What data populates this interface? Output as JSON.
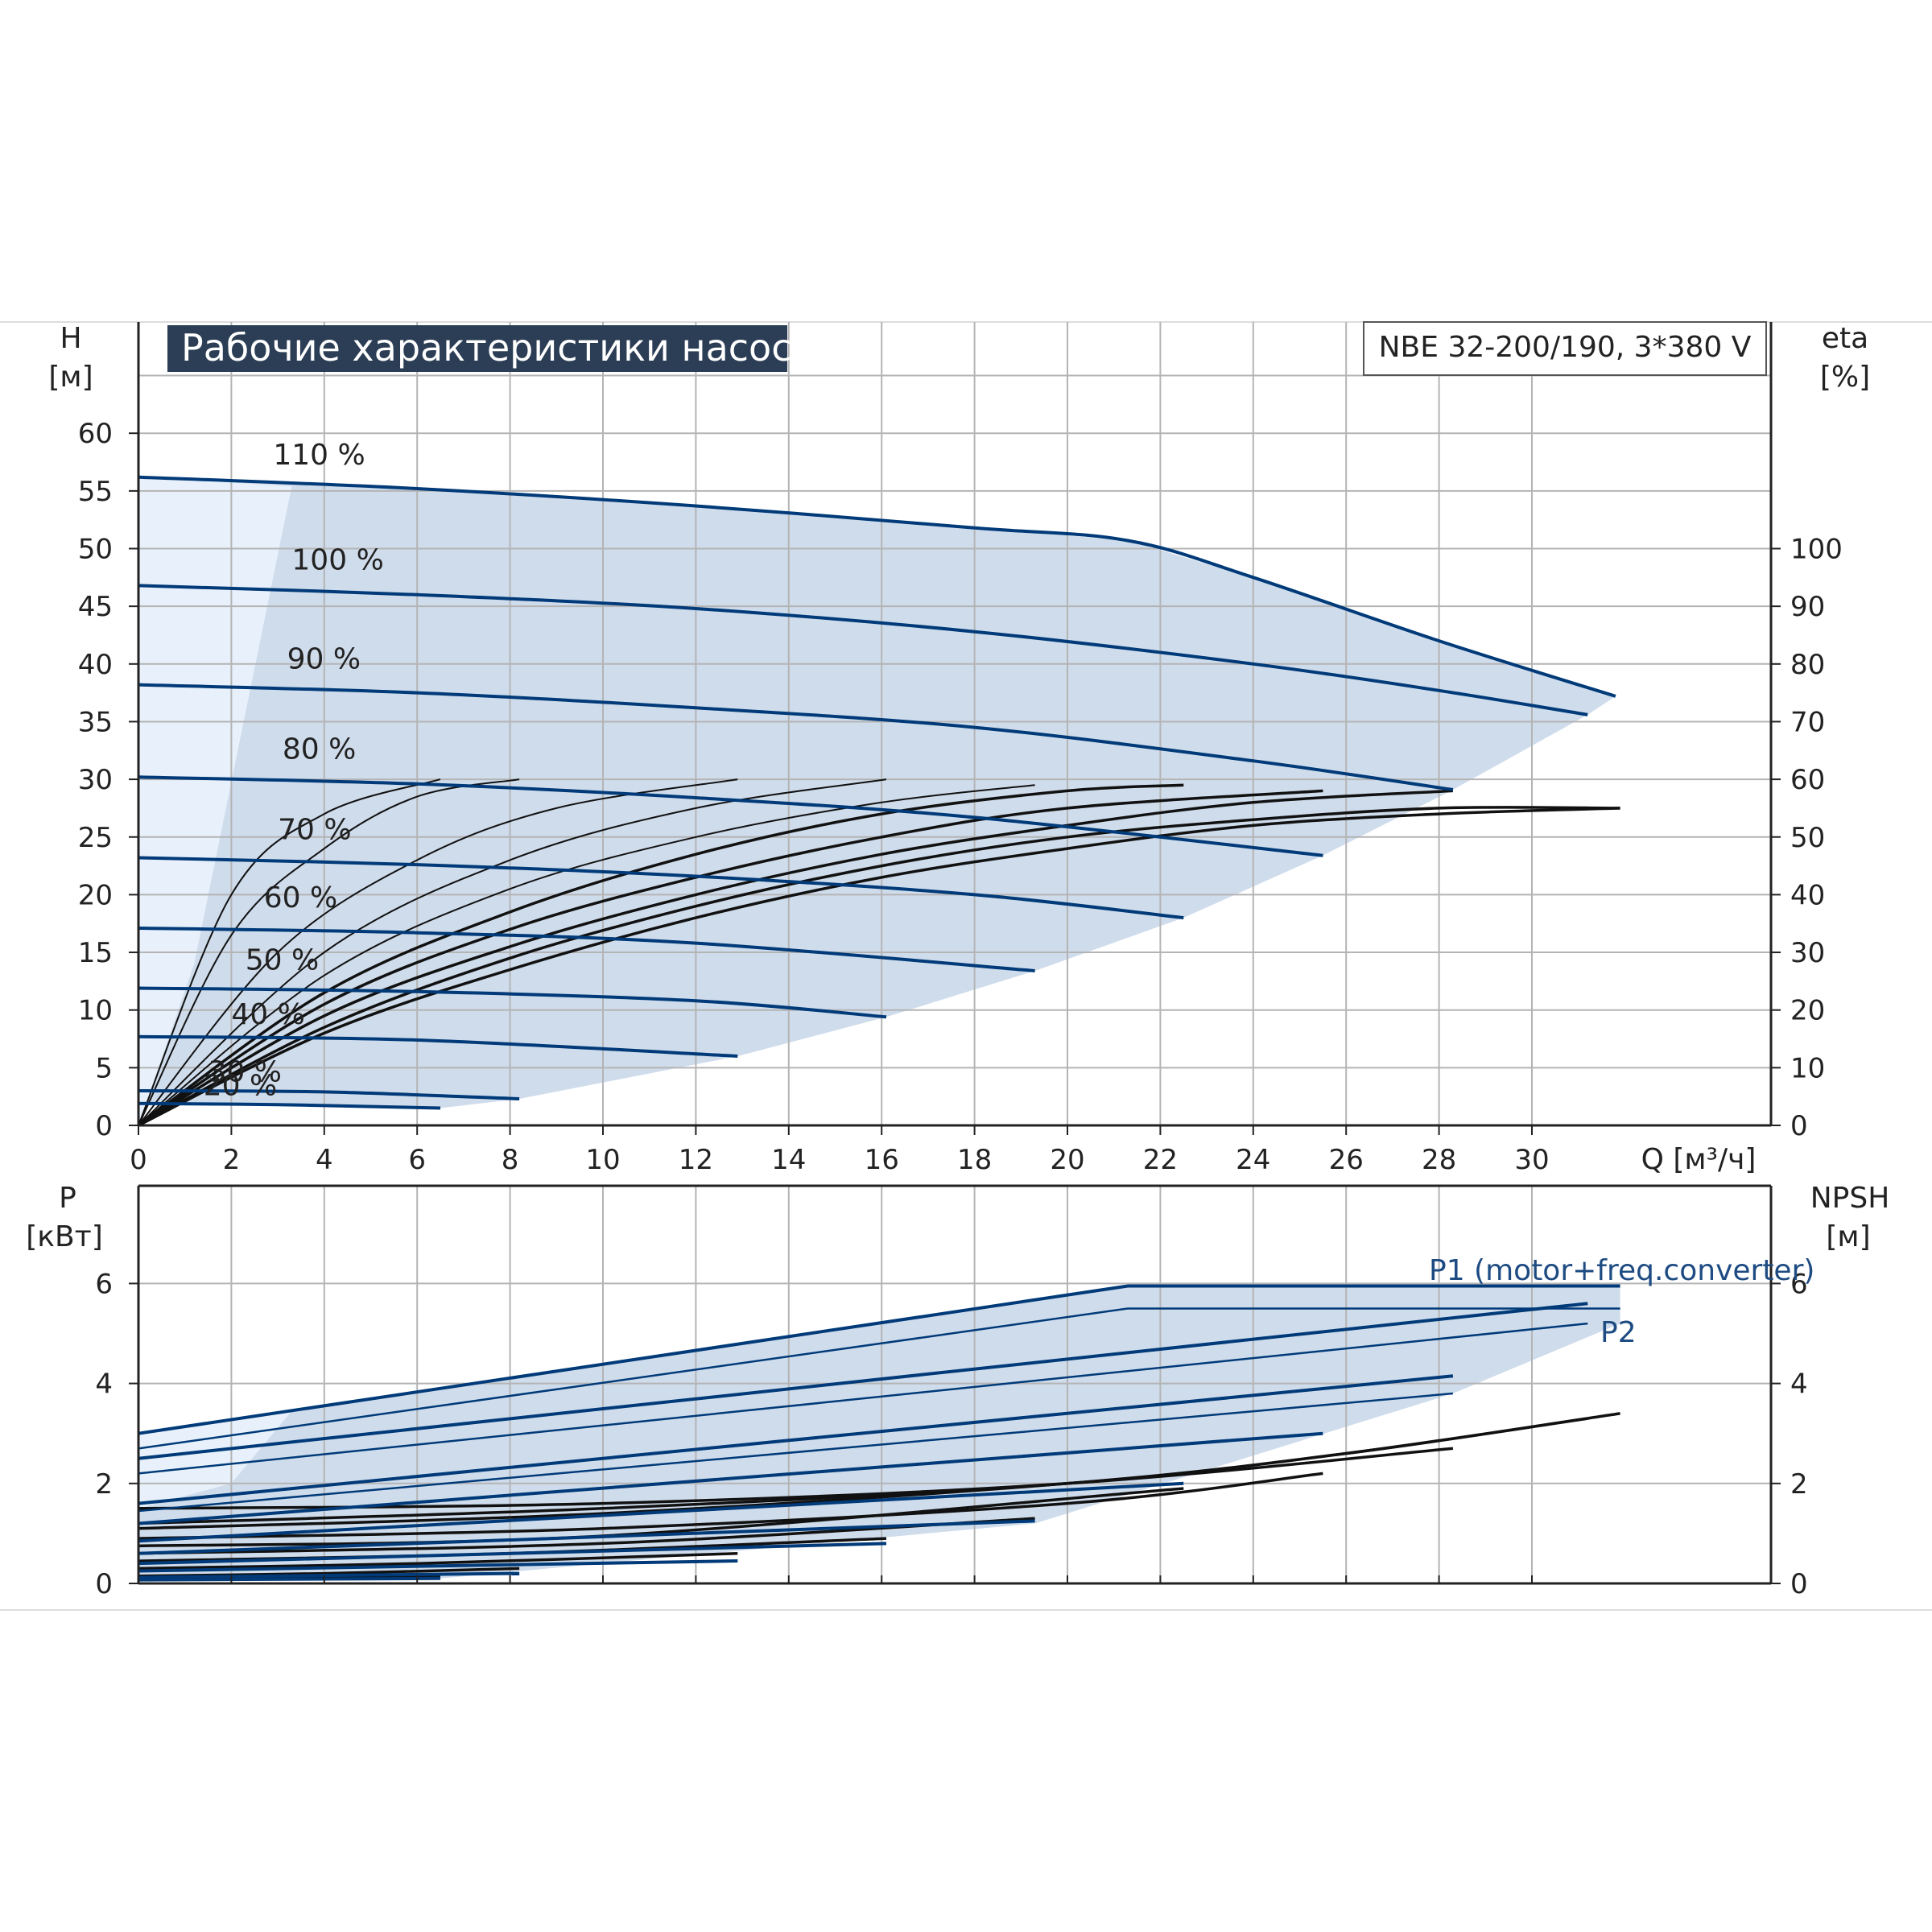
{
  "title": "Рабочие характеристики насоса",
  "model": "NBE 32-200/190, 3*380 V",
  "colors": {
    "curve": "#003a78",
    "eff": "#111111",
    "fill": "#cfdcec",
    "fill_light": "#e8f1fb",
    "grid": "#b4b4b4",
    "title_bg": "#2b3e55"
  },
  "chart_data": [
    {
      "type": "line",
      "xlabel": "Q [м³/ч]",
      "ylabel": "H",
      "ylabel_unit": "[м]",
      "y2label": "eta",
      "y2label_unit": "[%]",
      "xlim": [
        0,
        35
      ],
      "ylim": [
        0,
        65
      ],
      "y2lim": [
        0,
        130
      ],
      "x_ticks": [
        0,
        2,
        4,
        6,
        8,
        10,
        12,
        14,
        16,
        18,
        20,
        22,
        24,
        26,
        28,
        30
      ],
      "y_ticks": [
        0,
        5,
        10,
        15,
        20,
        25,
        30,
        35,
        40,
        45,
        50,
        55,
        60
      ],
      "y2_ticks": [
        0,
        10,
        20,
        30,
        40,
        50,
        60,
        70,
        80,
        90,
        100
      ],
      "grid": true,
      "speed_labels": [
        "110 %",
        "100 %",
        "90 %",
        "80 %",
        "70 %",
        "60 %",
        "50 %",
        "40 %",
        "30 %",
        "20 %"
      ],
      "series": [
        {
          "label": "110 %",
          "x": [
            0,
            6,
            12,
            18,
            21.3,
            24,
            28,
            31.8
          ],
          "y": [
            56.2,
            55.2,
            53.7,
            51.8,
            50.7,
            47.5,
            42.0,
            37.2
          ]
        },
        {
          "label": "100 %",
          "x": [
            0,
            6,
            12,
            18,
            24,
            28,
            31.2
          ],
          "y": [
            46.8,
            46.0,
            44.8,
            42.8,
            40.0,
            37.7,
            35.6
          ]
        },
        {
          "label": "90 %",
          "x": [
            0,
            6,
            12,
            18,
            24,
            28.3
          ],
          "y": [
            38.2,
            37.5,
            36.2,
            34.5,
            31.6,
            29.1
          ]
        },
        {
          "label": "80 %",
          "x": [
            0,
            6,
            12,
            18,
            25.5
          ],
          "y": [
            30.2,
            29.6,
            28.4,
            26.7,
            23.4
          ]
        },
        {
          "label": "70 %",
          "x": [
            0,
            6,
            12,
            18,
            22.5
          ],
          "y": [
            23.2,
            22.6,
            21.6,
            20.0,
            18.0
          ]
        },
        {
          "label": "60 %",
          "x": [
            0,
            6,
            12,
            19.3
          ],
          "y": [
            17.1,
            16.7,
            15.8,
            13.4
          ]
        },
        {
          "label": "50 %",
          "x": [
            0,
            6,
            12,
            16.1
          ],
          "y": [
            11.9,
            11.6,
            10.8,
            9.4
          ]
        },
        {
          "label": "40 %",
          "x": [
            0,
            6,
            12.9
          ],
          "y": [
            7.7,
            7.4,
            6.0
          ]
        },
        {
          "label": "30 %",
          "x": [
            0,
            4,
            8.2
          ],
          "y": [
            3.0,
            2.9,
            2.3
          ]
        },
        {
          "label": "20 %",
          "x": [
            0,
            3,
            6.5
          ],
          "y": [
            1.9,
            1.8,
            1.5
          ]
        }
      ],
      "efficiency_series": [
        {
          "label": "eta 20 %",
          "x": [
            0,
            2,
            4,
            6.5
          ],
          "y": [
            0,
            40,
            54,
            60
          ]
        },
        {
          "label": "eta 30 %",
          "x": [
            0,
            2,
            4,
            6,
            8.2
          ],
          "y": [
            0,
            33,
            48,
            57,
            60
          ]
        },
        {
          "label": "eta 40 %",
          "x": [
            0,
            3,
            6,
            9,
            12.9
          ],
          "y": [
            0,
            30,
            46,
            55,
            60
          ]
        },
        {
          "label": "eta 50 %",
          "x": [
            0,
            4,
            8,
            12,
            16.1
          ],
          "y": [
            0,
            30,
            46,
            55,
            60
          ]
        },
        {
          "label": "eta 60 %",
          "x": [
            0,
            4,
            8,
            12,
            16,
            19.3
          ],
          "y": [
            0,
            26,
            41,
            50,
            56,
            59
          ]
        },
        {
          "label": "eta 70 %",
          "x": [
            0,
            4,
            8,
            12,
            16,
            20,
            22.5
          ],
          "y": [
            0,
            23,
            37,
            47,
            54,
            58,
            59
          ]
        },
        {
          "label": "eta 80 %",
          "x": [
            0,
            4,
            8,
            12,
            16,
            20,
            25.5
          ],
          "y": [
            0,
            21,
            34,
            43,
            50,
            55,
            58
          ]
        },
        {
          "label": "eta 90 %",
          "x": [
            0,
            4,
            8,
            12,
            16,
            20,
            24,
            28.3
          ],
          "y": [
            0,
            19,
            31,
            40,
            47,
            52,
            56,
            58
          ]
        },
        {
          "label": "eta 100 %",
          "x": [
            0,
            4,
            8,
            12,
            16,
            20,
            24,
            28,
            31.9
          ],
          "y": [
            0,
            17,
            29,
            38,
            45,
            50,
            53,
            55,
            55
          ]
        },
        {
          "label": "eta 110 %",
          "x": [
            0,
            4,
            8,
            12,
            16,
            20,
            24,
            28,
            31.9
          ],
          "y": [
            0,
            16,
            27,
            36,
            43,
            48,
            52,
            54,
            55
          ]
        }
      ]
    },
    {
      "type": "line",
      "xlabel": "Q [м³/ч]",
      "ylabel": "P",
      "ylabel_unit": "[кВт]",
      "y2label": "NPSH",
      "y2label_unit": "[м]",
      "xlim": [
        0,
        35
      ],
      "ylim": [
        0,
        7
      ],
      "y_ticks": [
        0,
        2,
        4,
        6
      ],
      "y2_ticks": [
        0,
        2,
        4,
        6
      ],
      "grid": true,
      "series_labels": [
        "P1 (motor+freq.converter)",
        "P2"
      ],
      "series": [
        {
          "label": "P1 110 %",
          "x": [
            0,
            21.3,
            31.9
          ],
          "y": [
            3.0,
            5.95,
            5.95
          ]
        },
        {
          "label": "P2 110 %",
          "x": [
            0,
            21.3,
            31.9
          ],
          "y": [
            2.7,
            5.5,
            5.5
          ]
        },
        {
          "label": "P1 100 %",
          "x": [
            0,
            31.2
          ],
          "y": [
            2.5,
            5.6
          ]
        },
        {
          "label": "P2 100 %",
          "x": [
            0,
            31.2
          ],
          "y": [
            2.2,
            5.2
          ]
        },
        {
          "label": "P1 90 %",
          "x": [
            0,
            28.3
          ],
          "y": [
            1.6,
            4.15
          ]
        },
        {
          "label": "P2 90 %",
          "x": [
            0,
            28.3
          ],
          "y": [
            1.45,
            3.8
          ]
        },
        {
          "label": "P1 80 %",
          "x": [
            0,
            25.5
          ],
          "y": [
            1.2,
            3.0
          ]
        },
        {
          "label": "P1 70 %",
          "x": [
            0,
            22.5
          ],
          "y": [
            0.85,
            2.0
          ]
        },
        {
          "label": "P1 60 %",
          "x": [
            0,
            19.3
          ],
          "y": [
            0.6,
            1.25
          ]
        },
        {
          "label": "P1 50 %",
          "x": [
            0,
            16.1
          ],
          "y": [
            0.4,
            0.8
          ]
        },
        {
          "label": "P1 40 %",
          "x": [
            0,
            12.9
          ],
          "y": [
            0.25,
            0.45
          ]
        },
        {
          "label": "P1 30 %",
          "x": [
            0,
            8.2
          ],
          "y": [
            0.12,
            0.2
          ]
        },
        {
          "label": "P1 20 %",
          "x": [
            0,
            6.5
          ],
          "y": [
            0.07,
            0.1
          ]
        }
      ],
      "npsh_series": [
        {
          "label": "NPSH 110 %",
          "x": [
            0,
            10,
            20,
            26,
            31.9
          ],
          "y": [
            1.1,
            1.4,
            2.0,
            2.6,
            3.4
          ]
        },
        {
          "label": "NPSH 100 %",
          "x": [
            0,
            10,
            20,
            26,
            31.2
          ],
          "y": [
            1.2,
            1.5,
            2.0,
            2.6,
            3.3
          ]
        },
        {
          "label": "NPSH 90 %",
          "x": [
            0,
            10,
            20,
            28.3
          ],
          "y": [
            1.5,
            1.6,
            2.0,
            2.7
          ]
        },
        {
          "label": "NPSH 80 %",
          "x": [
            0,
            10,
            20,
            25.5
          ],
          "y": [
            0.9,
            1.1,
            1.6,
            2.2
          ]
        },
        {
          "label": "NPSH 70 %",
          "x": [
            0,
            10,
            22.5
          ],
          "y": [
            0.75,
            0.95,
            1.9
          ]
        },
        {
          "label": "NPSH 60 %",
          "x": [
            0,
            10,
            19.3
          ],
          "y": [
            0.6,
            0.8,
            1.3
          ]
        },
        {
          "label": "NPSH 50 %",
          "x": [
            0,
            8,
            16.1
          ],
          "y": [
            0.45,
            0.6,
            0.9
          ]
        },
        {
          "label": "NPSH 40 %",
          "x": [
            0,
            6,
            12.9
          ],
          "y": [
            0.3,
            0.4,
            0.6
          ]
        },
        {
          "label": "NPSH 30 %",
          "x": [
            0,
            4,
            8.2
          ],
          "y": [
            0.15,
            0.2,
            0.3
          ]
        },
        {
          "label": "NPSH 20 %",
          "x": [
            0,
            3,
            6.5
          ],
          "y": [
            0.08,
            0.1,
            0.15
          ]
        }
      ]
    }
  ]
}
